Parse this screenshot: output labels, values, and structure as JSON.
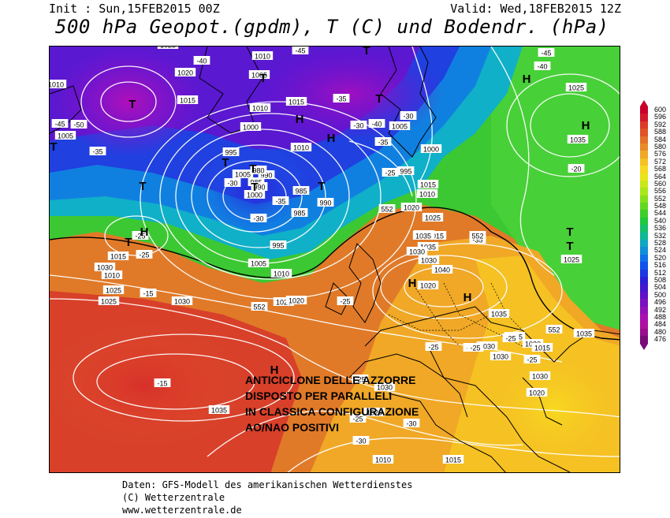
{
  "header": {
    "init": "Init : Sun,15FEB2015 00Z",
    "valid": "Valid: Wed,18FEB2015 12Z",
    "title": "500 hPa Geopot.(gpdm), T (C) und Bodendr. (hPa)"
  },
  "overlay_text": [
    "ANTICICLONE DELLE AZZORRE",
    "DISPOSTO PER PARALLELI",
    "IN CLASSICA CONFIGURAZIONE",
    "AO/NAO POSITIVI"
  ],
  "legend": {
    "values": [
      "600",
      "596",
      "592",
      "588",
      "584",
      "580",
      "576",
      "572",
      "568",
      "564",
      "560",
      "556",
      "552",
      "548",
      "544",
      "540",
      "536",
      "532",
      "528",
      "524",
      "520",
      "516",
      "512",
      "508",
      "504",
      "500",
      "496",
      "492",
      "488",
      "484",
      "480",
      "476"
    ],
    "colors": [
      "#c8002a",
      "#d2182b",
      "#dc3a2a",
      "#e0532a",
      "#e4702a",
      "#e98a28",
      "#f0a826",
      "#f5c123",
      "#f7d820",
      "#e8e41c",
      "#c9e81a",
      "#a8e81a",
      "#85e01c",
      "#62d820",
      "#3ccf2a",
      "#1fc83c",
      "#14c06a",
      "#10b896",
      "#10a8c0",
      "#1090d8",
      "#1070e8",
      "#1050ec",
      "#1a38e4",
      "#2a20d8",
      "#4418d0",
      "#6010c8",
      "#7a10c0",
      "#9210b8",
      "#a810b0",
      "#b010a0",
      "#980e8c",
      "#7a0a78"
    ]
  },
  "footer": {
    "line1": "Daten: GFS-Modell des amerikanischen Wetterdienstes",
    "line2": "(C) Wetterzentrale",
    "line3": "www.wetterzentrale.de"
  },
  "map_labels": {
    "highs": [
      "H",
      "H",
      "H",
      "H",
      "H",
      "H",
      "H",
      "H"
    ],
    "lows": [
      "T",
      "T",
      "T",
      "T",
      "T",
      "T",
      "T",
      "T",
      "T",
      "T",
      "T",
      "T",
      "T"
    ],
    "pressure": [
      "1025",
      "1010",
      "1020",
      "1015",
      "1005",
      "1010",
      "1000",
      "1010",
      "1015",
      "1005",
      "995",
      "1010",
      "1005",
      "985",
      "990",
      "1000",
      "990",
      "980",
      "985",
      "990",
      "985",
      "995",
      "1005",
      "1010",
      "1020",
      "1025",
      "1030",
      "1035",
      "1040",
      "1035",
      "1030",
      "1020",
      "1015",
      "1005",
      "1000",
      "995",
      "1010",
      "1015",
      "1020",
      "1025",
      "1030",
      "1030",
      "1035",
      "1025",
      "1030",
      "1020",
      "1020",
      "1010",
      "1015",
      "1030",
      "1035",
      "1020",
      "1015",
      "1010",
      "1025",
      "1030",
      "1035",
      "1030",
      "1015",
      "1030",
      "1030",
      "1025",
      "1035",
      "1035"
    ],
    "temperature": [
      "-40",
      "-45",
      "-35",
      "-30",
      "-40",
      "-35",
      "-30",
      "-45",
      "-40",
      "-45",
      "-50",
      "-35",
      "-25",
      "-30",
      "-30",
      "-35",
      "-25",
      "-25",
      "-15",
      "-25",
      "-15",
      "-25",
      "-25",
      "-25",
      "-25",
      "-25",
      "-30",
      "-30",
      "-35",
      "-20",
      "-25",
      "-15"
    ],
    "geopotential": [
      "552",
      "552",
      "552",
      "552"
    ]
  }
}
